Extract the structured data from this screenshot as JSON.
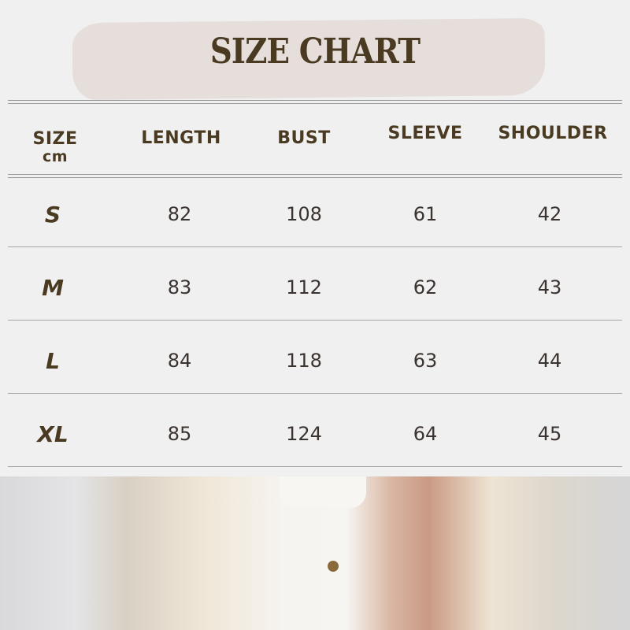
{
  "title": "SIZE CHART",
  "headers": {
    "size": "SIZE",
    "unit": "cm",
    "length": "LENGTH",
    "bust": "BUST",
    "sleeve": "SLEEVE",
    "shoulder": "SHOULDER"
  },
  "rows": [
    {
      "size": "S",
      "length": "82",
      "bust": "108",
      "sleeve": "61",
      "shoulder": "42"
    },
    {
      "size": "M",
      "length": "83",
      "bust": "112",
      "sleeve": "62",
      "shoulder": "43"
    },
    {
      "size": "L",
      "length": "84",
      "bust": "118",
      "sleeve": "63",
      "shoulder": "44"
    },
    {
      "size": "XL",
      "length": "85",
      "bust": "124",
      "sleeve": "64",
      "shoulder": "45"
    }
  ],
  "colors": {
    "text": "#4a3a22",
    "title_brush": "#e6dedb",
    "background": "#f0f0f0"
  }
}
